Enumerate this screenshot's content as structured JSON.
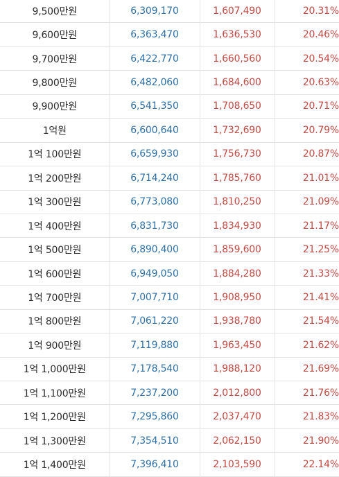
{
  "table": {
    "rows": [
      {
        "salary": "9,500만원",
        "net_monthly": "6,309,170",
        "deduction": "1,607,490",
        "rate": "20.31%"
      },
      {
        "salary": "9,600만원",
        "net_monthly": "6,363,470",
        "deduction": "1,636,530",
        "rate": "20.46%"
      },
      {
        "salary": "9,700만원",
        "net_monthly": "6,422,770",
        "deduction": "1,660,560",
        "rate": "20.54%"
      },
      {
        "salary": "9,800만원",
        "net_monthly": "6,482,060",
        "deduction": "1,684,600",
        "rate": "20.63%"
      },
      {
        "salary": "9,900만원",
        "net_monthly": "6,541,350",
        "deduction": "1,708,650",
        "rate": "20.71%"
      },
      {
        "salary": "1억원",
        "net_monthly": "6,600,640",
        "deduction": "1,732,690",
        "rate": "20.79%"
      },
      {
        "salary": "1억 100만원",
        "net_monthly": "6,659,930",
        "deduction": "1,756,730",
        "rate": "20.87%"
      },
      {
        "salary": "1억 200만원",
        "net_monthly": "6,714,240",
        "deduction": "1,785,760",
        "rate": "21.01%"
      },
      {
        "salary": "1억 300만원",
        "net_monthly": "6,773,080",
        "deduction": "1,810,250",
        "rate": "21.09%"
      },
      {
        "salary": "1억 400만원",
        "net_monthly": "6,831,730",
        "deduction": "1,834,930",
        "rate": "21.17%"
      },
      {
        "salary": "1억 500만원",
        "net_monthly": "6,890,400",
        "deduction": "1,859,600",
        "rate": "21.25%"
      },
      {
        "salary": "1억 600만원",
        "net_monthly": "6,949,050",
        "deduction": "1,884,280",
        "rate": "21.33%"
      },
      {
        "salary": "1억 700만원",
        "net_monthly": "7,007,710",
        "deduction": "1,908,950",
        "rate": "21.41%"
      },
      {
        "salary": "1억 800만원",
        "net_monthly": "7,061,220",
        "deduction": "1,938,780",
        "rate": "21.54%"
      },
      {
        "salary": "1억 900만원",
        "net_monthly": "7,119,880",
        "deduction": "1,963,450",
        "rate": "21.62%"
      },
      {
        "salary": "1억 1,000만원",
        "net_monthly": "7,178,540",
        "deduction": "1,988,120",
        "rate": "21.69%"
      },
      {
        "salary": "1억 1,100만원",
        "net_monthly": "7,237,200",
        "deduction": "2,012,800",
        "rate": "21.76%"
      },
      {
        "salary": "1억 1,200만원",
        "net_monthly": "7,295,860",
        "deduction": "2,037,470",
        "rate": "21.83%"
      },
      {
        "salary": "1억 1,300만원",
        "net_monthly": "7,354,510",
        "deduction": "2,062,150",
        "rate": "21.90%"
      },
      {
        "salary": "1억 1,400만원",
        "net_monthly": "7,396,410",
        "deduction": "2,103,590",
        "rate": "22.14%"
      }
    ]
  },
  "colors": {
    "salary_text": "#2b2b2b",
    "net_text": "#2e6fa6",
    "deduction_text": "#c04a44",
    "rate_text": "#c04a44",
    "border": "#e2e2e2"
  }
}
